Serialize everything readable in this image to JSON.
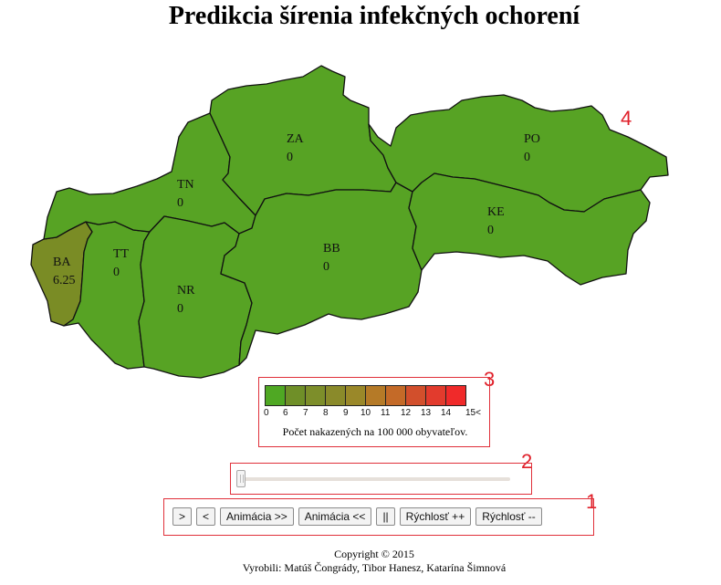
{
  "header": {
    "title": "Predikcia šírenia infekčných ochorení"
  },
  "map": {
    "regions": [
      {
        "code": "BA",
        "value": "6.25",
        "color": "#7a8c25"
      },
      {
        "code": "TT",
        "value": "0",
        "color": "#57a324"
      },
      {
        "code": "TN",
        "value": "0",
        "color": "#57a324"
      },
      {
        "code": "NR",
        "value": "0",
        "color": "#57a324"
      },
      {
        "code": "ZA",
        "value": "0",
        "color": "#57a324"
      },
      {
        "code": "BB",
        "value": "0",
        "color": "#57a324"
      },
      {
        "code": "PO",
        "value": "0",
        "color": "#57a324"
      },
      {
        "code": "KE",
        "value": "0",
        "color": "#57a324"
      }
    ]
  },
  "legend": {
    "colors": [
      "#4fa823",
      "#6f8f28",
      "#7d8e2a",
      "#8a8a2a",
      "#9a8829",
      "#b57a27",
      "#c46a28",
      "#d24f2c",
      "#e23b2d",
      "#f02a2a"
    ],
    "ticks": [
      "0",
      "6",
      "7",
      "8",
      "9",
      "10",
      "11",
      "12",
      "13",
      "14",
      "15<"
    ],
    "caption": "Počet nakazených na 100 000 obyvateľov."
  },
  "slider": {
    "value": 0
  },
  "controls": {
    "next": ">",
    "prev": "<",
    "animate_forward": "Animácia >>",
    "animate_backward": "Animácia <<",
    "pause": "||",
    "speed_up": "Rýchlosť ++",
    "speed_down": "Rýchlosť --"
  },
  "annotations": [
    "1",
    "2",
    "3",
    "4"
  ],
  "footer": {
    "copyright": "Copyright © 2015",
    "authors": "Vyrobili: Matúš Čongrády, Tibor Hanesz, Katarína Šimnová"
  }
}
